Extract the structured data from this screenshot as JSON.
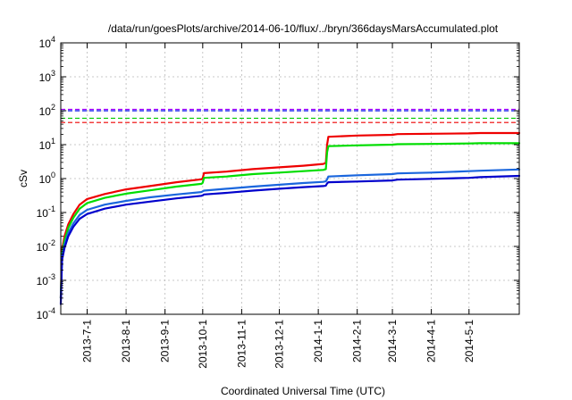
{
  "chart_data": {
    "type": "line",
    "title": "/data/run/goesPlots/archive/2014-06-10/flux/../bryn/366daysMarsAccumulated.plot",
    "xlabel": "Coordinated Universal Time (UTC)",
    "ylabel": "cSv",
    "yscale": "log",
    "ylim": [
      0.0001,
      10000
    ],
    "xlim": [
      "2013-06-10",
      "2014-06-10"
    ],
    "grid": true,
    "y_ticks": [
      {
        "base": "10",
        "exp": "-4",
        "value": 0.0001
      },
      {
        "base": "10",
        "exp": "-3",
        "value": 0.001
      },
      {
        "base": "10",
        "exp": "-2",
        "value": 0.01
      },
      {
        "base": "10",
        "exp": "-1",
        "value": 0.1
      },
      {
        "base": "10",
        "exp": "0",
        "value": 1
      },
      {
        "base": "10",
        "exp": "1",
        "value": 10
      },
      {
        "base": "10",
        "exp": "2",
        "value": 100
      },
      {
        "base": "10",
        "exp": "3",
        "value": 1000
      },
      {
        "base": "10",
        "exp": "4",
        "value": 10000
      }
    ],
    "x_ticks": [
      {
        "label": "2013-7-1",
        "date": "2013-07-01"
      },
      {
        "label": "2013-8-1",
        "date": "2013-08-01"
      },
      {
        "label": "2013-9-1",
        "date": "2013-09-01"
      },
      {
        "label": "2013-10-1",
        "date": "2013-10-01"
      },
      {
        "label": "2013-11-1",
        "date": "2013-11-01"
      },
      {
        "label": "2013-12-1",
        "date": "2013-12-01"
      },
      {
        "label": "2014-1-1",
        "date": "2014-01-01"
      },
      {
        "label": "2014-2-1",
        "date": "2014-02-01"
      },
      {
        "label": "2014-3-1",
        "date": "2014-03-01"
      },
      {
        "label": "2014-4-1",
        "date": "2014-04-01"
      },
      {
        "label": "2014-5-1",
        "date": "2014-05-01"
      }
    ],
    "series": [
      {
        "color": "#ee0000",
        "x": [
          "2013-06-10",
          "2013-06-11",
          "2013-06-13",
          "2013-06-16",
          "2013-06-20",
          "2013-06-25",
          "2013-07-01",
          "2013-07-15",
          "2013-08-01",
          "2013-08-20",
          "2013-09-10",
          "2013-09-30",
          "2013-10-01",
          "2013-10-02",
          "2013-10-20",
          "2013-11-10",
          "2013-12-01",
          "2013-12-20",
          "2014-01-05",
          "2014-01-07",
          "2014-01-08",
          "2014-01-09",
          "2014-02-01",
          "2014-03-01",
          "2014-03-05",
          "2014-04-01",
          "2014-05-01",
          "2014-05-10",
          "2014-06-10"
        ],
        "y": [
          0.0003,
          0.008,
          0.02,
          0.045,
          0.09,
          0.17,
          0.25,
          0.35,
          0.48,
          0.6,
          0.78,
          0.95,
          1.02,
          1.45,
          1.6,
          1.9,
          2.15,
          2.4,
          2.7,
          2.9,
          10,
          17,
          18.5,
          19.5,
          20.5,
          21,
          21.5,
          22,
          22
        ]
      },
      {
        "color": "#00dd00",
        "x": [
          "2013-06-10",
          "2013-06-11",
          "2013-06-13",
          "2013-06-16",
          "2013-06-20",
          "2013-06-25",
          "2013-07-01",
          "2013-07-15",
          "2013-08-01",
          "2013-08-20",
          "2013-09-10",
          "2013-09-30",
          "2013-10-01",
          "2013-10-02",
          "2013-10-20",
          "2013-11-10",
          "2013-12-01",
          "2013-12-20",
          "2014-01-05",
          "2014-01-07",
          "2014-01-08",
          "2014-01-09",
          "2014-02-01",
          "2014-03-01",
          "2014-03-05",
          "2014-04-01",
          "2014-05-01",
          "2014-05-10",
          "2014-06-10"
        ],
        "y": [
          0.0003,
          0.006,
          0.015,
          0.035,
          0.07,
          0.13,
          0.19,
          0.27,
          0.36,
          0.45,
          0.58,
          0.7,
          0.75,
          1.05,
          1.15,
          1.35,
          1.5,
          1.65,
          1.8,
          1.9,
          6,
          9,
          9.5,
          10,
          10.3,
          10.5,
          10.8,
          11,
          11
        ]
      },
      {
        "color": "#1a66dd",
        "x": [
          "2013-06-10",
          "2013-06-11",
          "2013-06-13",
          "2013-06-16",
          "2013-06-20",
          "2013-06-25",
          "2013-07-01",
          "2013-07-15",
          "2013-08-01",
          "2013-08-20",
          "2013-09-10",
          "2013-09-30",
          "2013-10-01",
          "2013-10-02",
          "2013-10-20",
          "2013-11-10",
          "2013-12-01",
          "2013-12-20",
          "2014-01-05",
          "2014-01-07",
          "2014-01-08",
          "2014-01-09",
          "2014-02-01",
          "2014-03-01",
          "2014-03-05",
          "2014-04-01",
          "2014-05-01",
          "2014-05-10",
          "2014-06-10"
        ],
        "y": [
          0.0003,
          0.005,
          0.011,
          0.025,
          0.048,
          0.085,
          0.12,
          0.17,
          0.22,
          0.28,
          0.34,
          0.4,
          0.42,
          0.44,
          0.5,
          0.58,
          0.66,
          0.74,
          0.8,
          0.83,
          0.95,
          1.15,
          1.25,
          1.35,
          1.42,
          1.5,
          1.65,
          1.7,
          1.85
        ]
      },
      {
        "color": "#0000cc",
        "x": [
          "2013-06-10",
          "2013-06-11",
          "2013-06-13",
          "2013-06-16",
          "2013-06-20",
          "2013-06-25",
          "2013-07-01",
          "2013-07-15",
          "2013-08-01",
          "2013-08-20",
          "2013-09-10",
          "2013-09-30",
          "2013-10-01",
          "2013-10-02",
          "2013-10-20",
          "2013-11-10",
          "2013-12-01",
          "2013-12-20",
          "2014-01-05",
          "2014-01-07",
          "2014-01-08",
          "2014-01-09",
          "2014-02-01",
          "2014-03-01",
          "2014-03-05",
          "2014-04-01",
          "2014-05-01",
          "2014-05-10",
          "2014-06-10"
        ],
        "y": [
          0.0002,
          0.004,
          0.009,
          0.02,
          0.038,
          0.065,
          0.09,
          0.13,
          0.17,
          0.21,
          0.26,
          0.31,
          0.32,
          0.34,
          0.38,
          0.44,
          0.5,
          0.56,
          0.6,
          0.62,
          0.72,
          0.78,
          0.82,
          0.88,
          0.93,
          0.98,
          1.05,
          1.1,
          1.2
        ]
      }
    ],
    "reference_lines": [
      {
        "value": 110,
        "color": "#aa00ff"
      },
      {
        "value": 100,
        "color": "#0000ee"
      },
      {
        "value": 60,
        "color": "#00cc00"
      },
      {
        "value": 45,
        "color": "#ee0000"
      }
    ]
  }
}
